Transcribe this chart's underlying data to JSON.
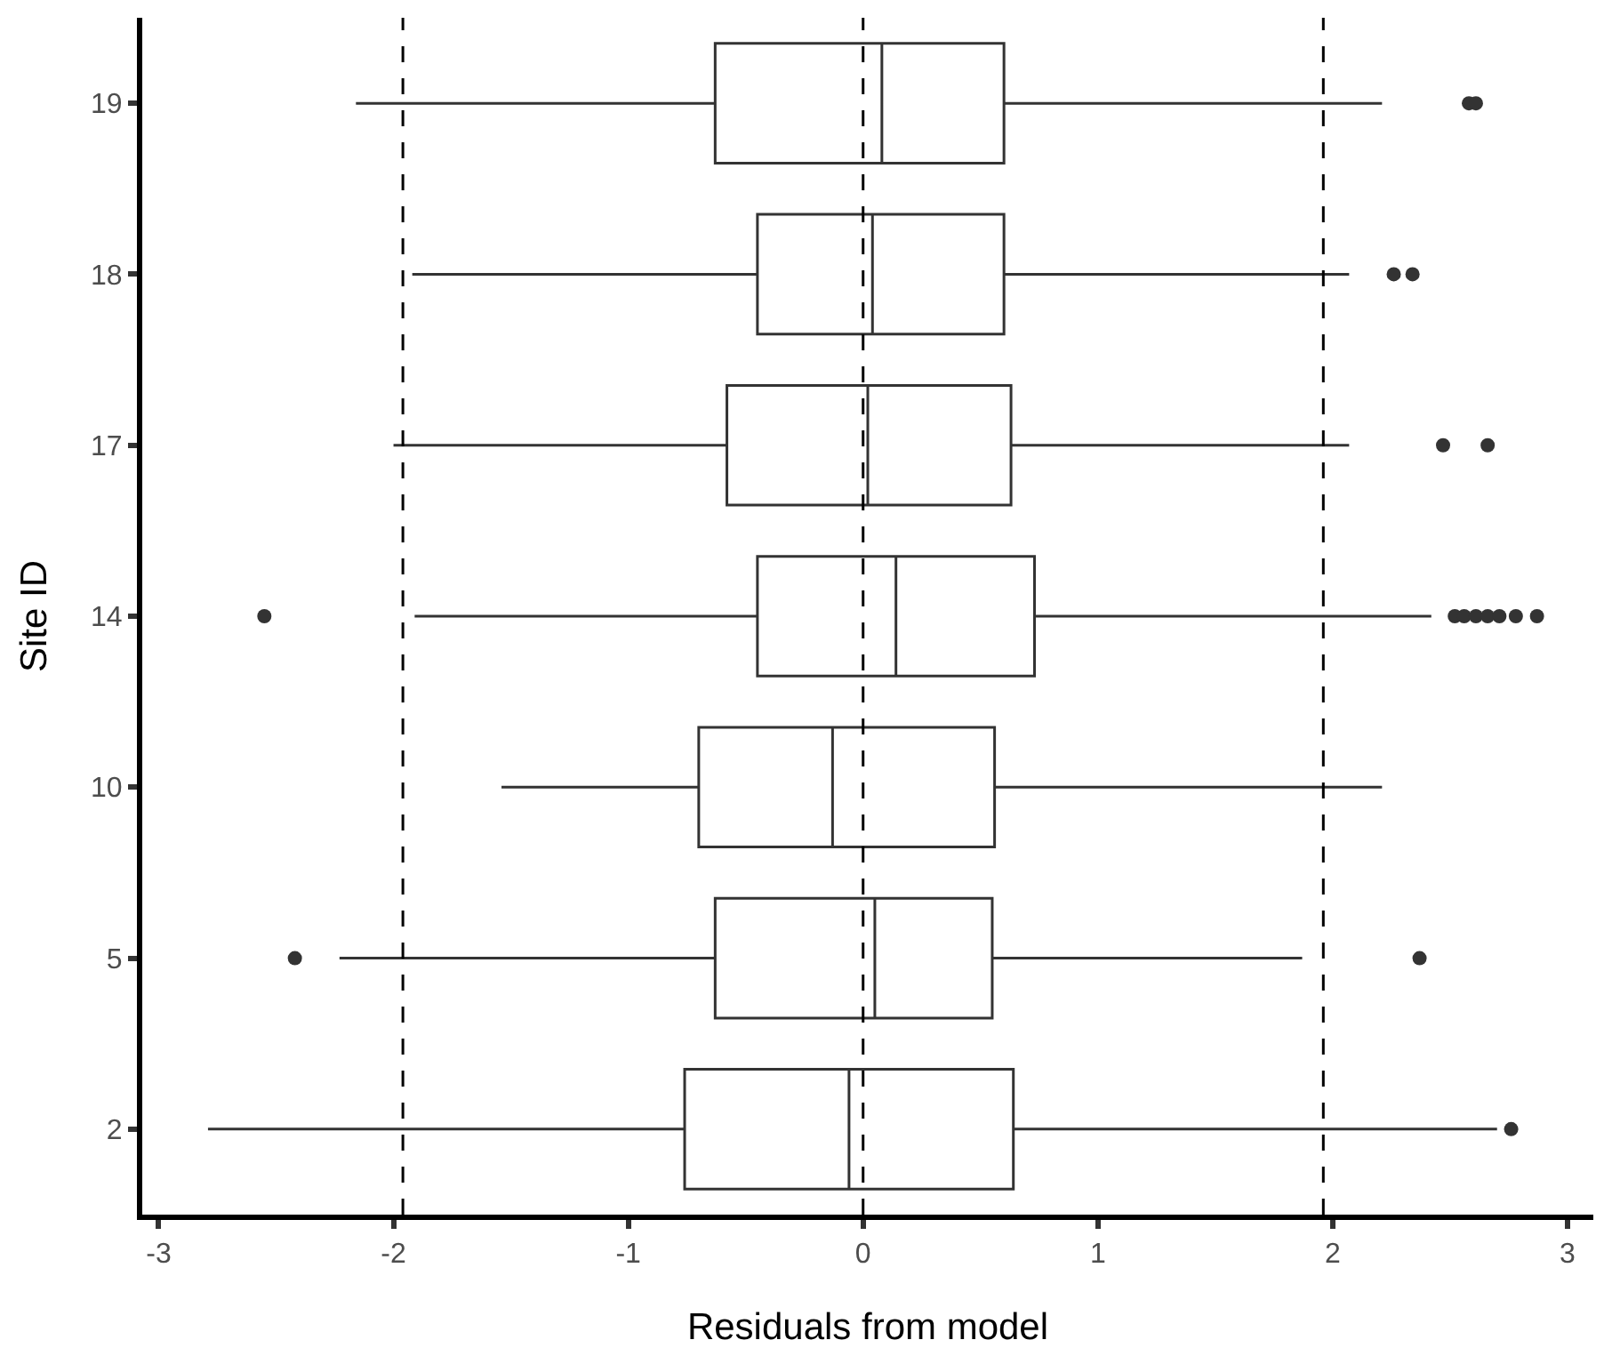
{
  "chart_data": {
    "type": "box",
    "orientation": "horizontal",
    "xlabel": "Residuals from model",
    "ylabel": "Site ID",
    "categories": [
      "19",
      "18",
      "17",
      "14",
      "10",
      "5",
      "2"
    ],
    "boxes": [
      {
        "low": -2.16,
        "q1": -0.63,
        "median": 0.08,
        "q3": 0.6,
        "high": 2.21,
        "outliers": [
          2.58,
          2.61
        ]
      },
      {
        "low": -1.92,
        "q1": -0.45,
        "median": 0.04,
        "q3": 0.6,
        "high": 2.07,
        "outliers": [
          2.26,
          2.34
        ]
      },
      {
        "low": -2.0,
        "q1": -0.58,
        "median": 0.02,
        "q3": 0.63,
        "high": 2.07,
        "outliers": [
          2.47,
          2.66
        ]
      },
      {
        "low": -1.91,
        "q1": -0.45,
        "median": 0.14,
        "q3": 0.73,
        "high": 2.42,
        "outliers": [
          -2.55,
          2.52,
          2.56,
          2.61,
          2.66,
          2.71,
          2.78,
          2.87
        ]
      },
      {
        "low": -1.54,
        "q1": -0.7,
        "median": -0.13,
        "q3": 0.56,
        "high": 2.21
      },
      {
        "low": -2.23,
        "q1": -0.63,
        "median": 0.05,
        "q3": 0.55,
        "high": 1.87,
        "outliers": [
          -2.42,
          2.37
        ]
      },
      {
        "low": -2.79,
        "q1": -0.76,
        "median": -0.06,
        "q3": 0.64,
        "high": 2.7,
        "outliers": [
          2.76
        ]
      }
    ],
    "color": "#333333",
    "xlim": [
      -3.07,
      3.11
    ],
    "xticks": [
      -3,
      -2,
      -1,
      0,
      1,
      2,
      3
    ],
    "ref_lines": [
      {
        "axis": "x",
        "value": -1.96,
        "line_style": "dashed",
        "color": "#000000"
      },
      {
        "axis": "x",
        "value": 1.96,
        "line_style": "dashed",
        "color": "#000000"
      },
      {
        "axis": "x",
        "value": 0,
        "line_style": "dashed",
        "color": "#000000"
      }
    ],
    "grid": false
  }
}
